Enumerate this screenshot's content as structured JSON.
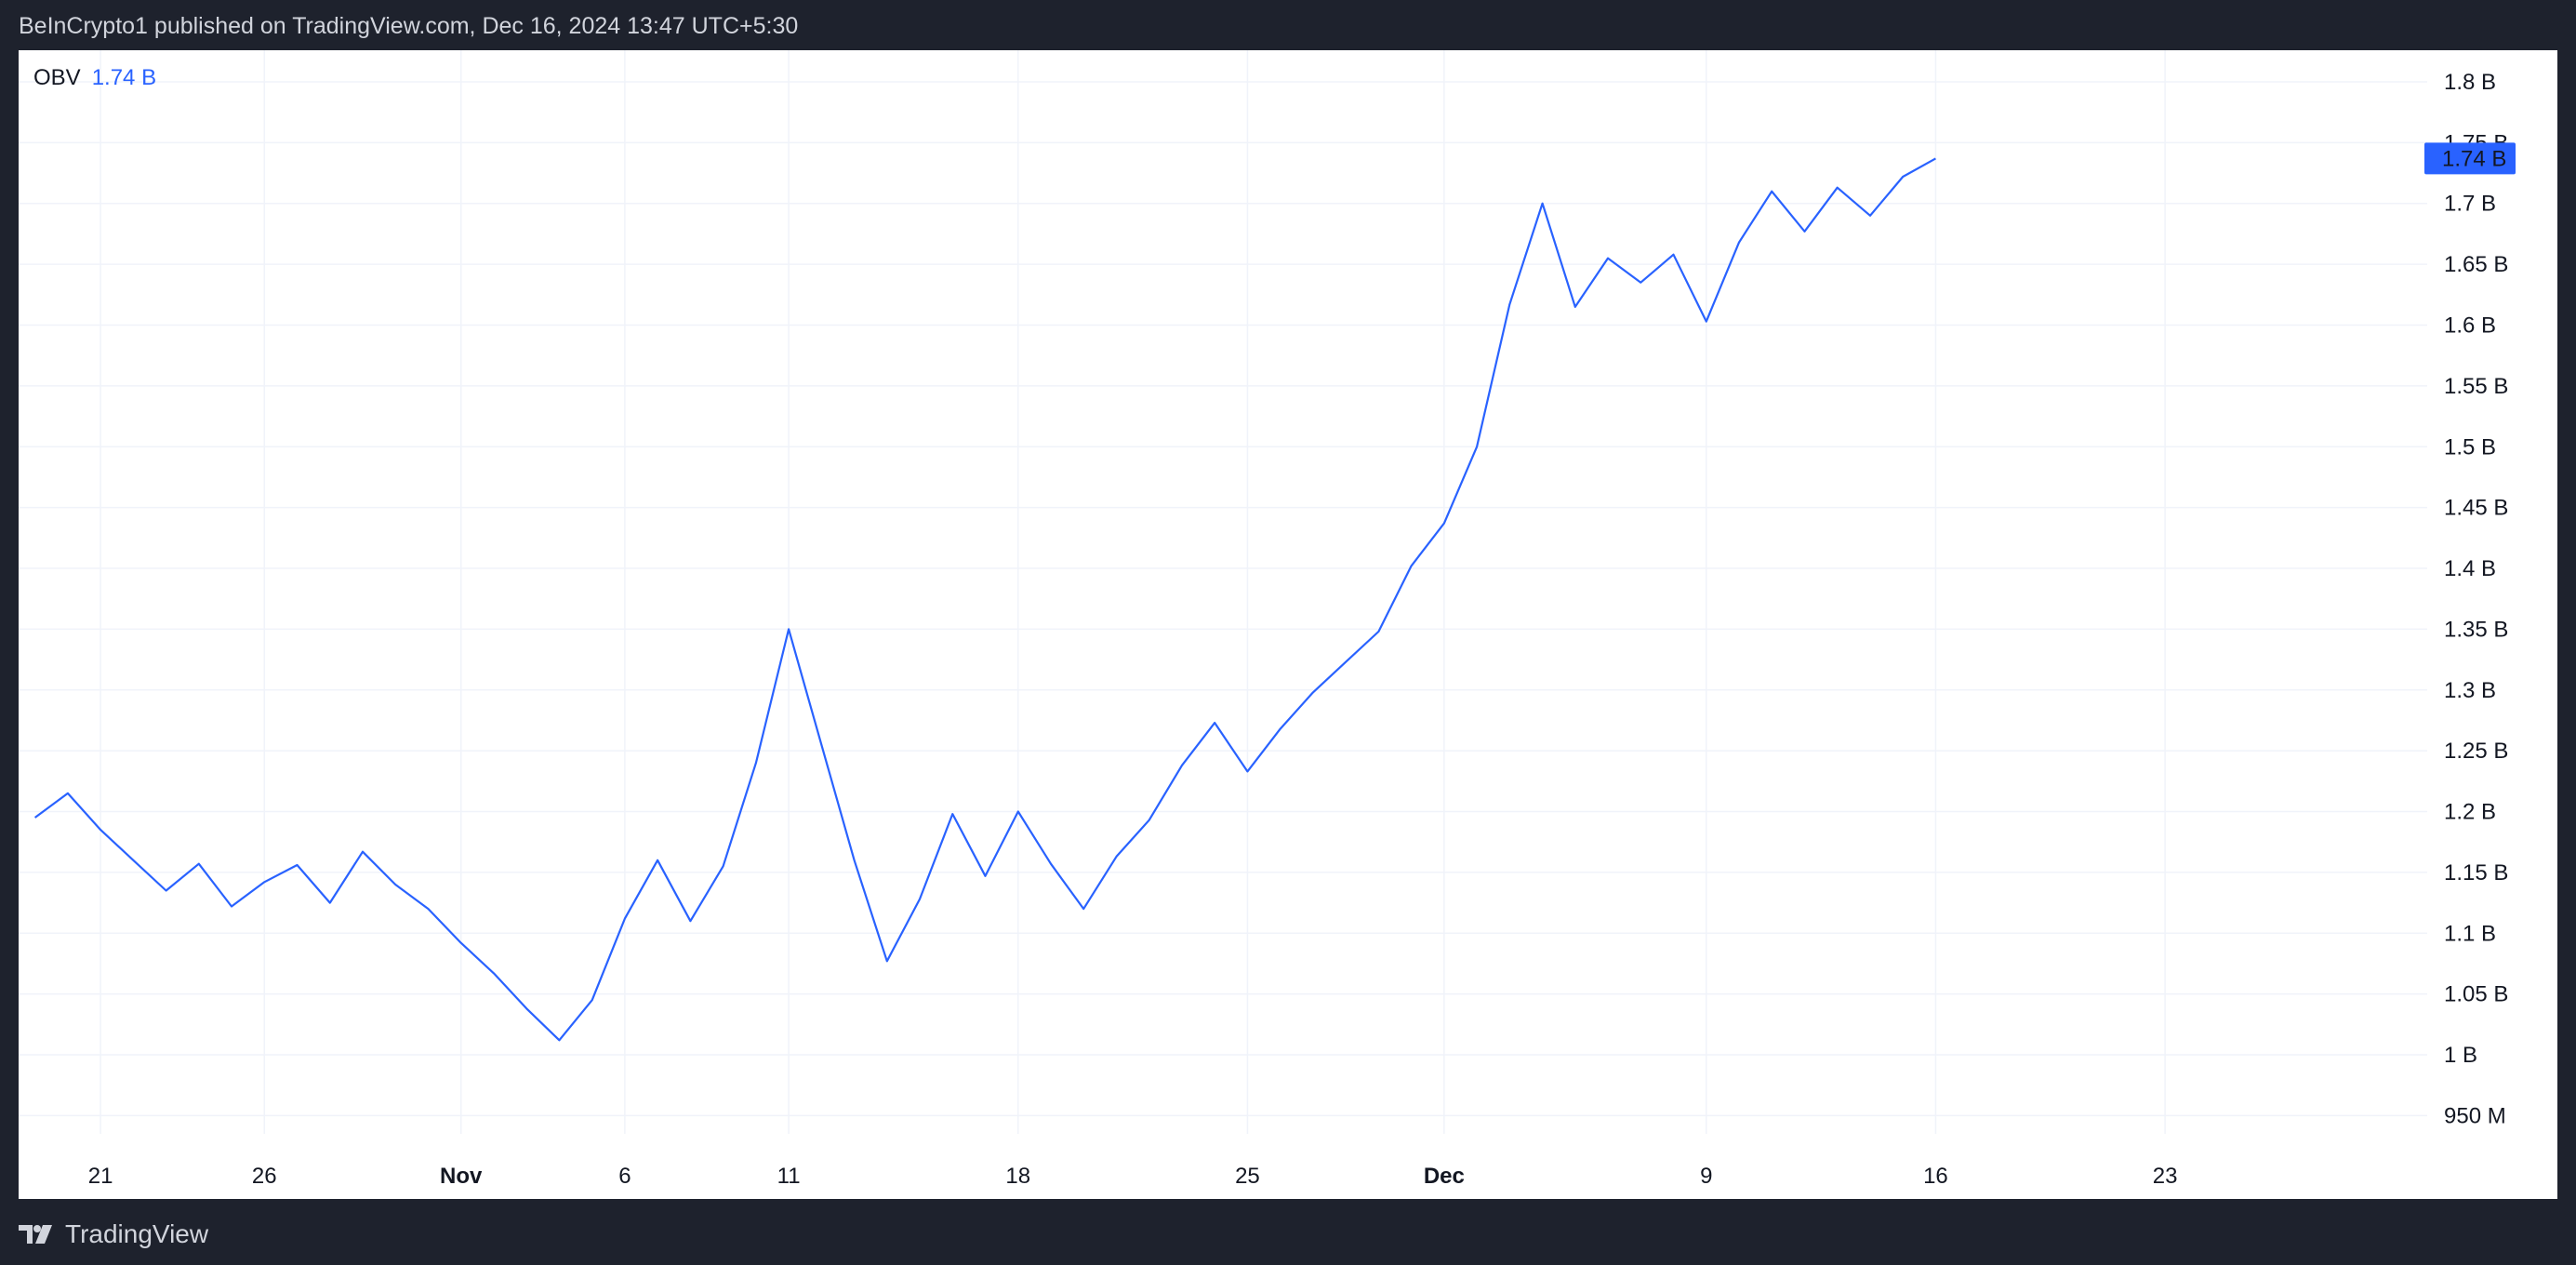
{
  "header": {
    "published": "BeInCrypto1 published on TradingView.com, Dec 16, 2024 13:47 UTC+5:30"
  },
  "footer": {
    "brand": "TradingView"
  },
  "legend": {
    "name": "OBV",
    "value": "1.74 B"
  },
  "colors": {
    "series": "#2962ff",
    "grid": "#f0f3fa",
    "background": "#ffffff",
    "frame": "#1e222d",
    "text": "#131722"
  },
  "chart_data": {
    "type": "line",
    "x": [
      "Oct 19",
      "Oct 20",
      "Oct 21",
      "Oct 22",
      "Oct 23",
      "Oct 24",
      "Oct 25",
      "Oct 26",
      "Oct 27",
      "Oct 28",
      "Oct 29",
      "Oct 30",
      "Oct 31",
      "Nov 1",
      "Nov 2",
      "Nov 3",
      "Nov 4",
      "Nov 5",
      "Nov 6",
      "Nov 7",
      "Nov 8",
      "Nov 9",
      "Nov 10",
      "Nov 11",
      "Nov 12",
      "Nov 13",
      "Nov 14",
      "Nov 15",
      "Nov 16",
      "Nov 17",
      "Nov 18",
      "Nov 19",
      "Nov 20",
      "Nov 21",
      "Nov 22",
      "Nov 23",
      "Nov 24",
      "Nov 25",
      "Nov 26",
      "Nov 27",
      "Nov 28",
      "Nov 29",
      "Nov 30",
      "Dec 1",
      "Dec 2",
      "Dec 3",
      "Dec 4",
      "Dec 5",
      "Dec 6",
      "Dec 7",
      "Dec 8",
      "Dec 9",
      "Dec 10",
      "Dec 11",
      "Dec 12",
      "Dec 13",
      "Dec 14",
      "Dec 15",
      "Dec 16"
    ],
    "series": [
      {
        "name": "OBV",
        "values": [
          1.195,
          1.215,
          1.185,
          1.16,
          1.135,
          1.157,
          1.122,
          1.142,
          1.156,
          1.125,
          1.167,
          1.14,
          1.12,
          1.092,
          1.067,
          1.038,
          1.012,
          1.045,
          1.112,
          1.16,
          1.11,
          1.155,
          1.24,
          1.35,
          1.255,
          1.16,
          1.077,
          1.128,
          1.198,
          1.147,
          1.2,
          1.157,
          1.12,
          1.163,
          1.193,
          1.238,
          1.273,
          1.233,
          1.268,
          1.298,
          1.323,
          1.348,
          1.402,
          1.437,
          1.5,
          1.617,
          1.7,
          1.615,
          1.655,
          1.635,
          1.658,
          1.603,
          1.668,
          1.71,
          1.677,
          1.713,
          1.69,
          1.722,
          1.737
        ]
      }
    ],
    "y_ticks": [
      "1.8 B",
      "1.75 B",
      "1.7 B",
      "1.65 B",
      "1.6 B",
      "1.55 B",
      "1.5 B",
      "1.45 B",
      "1.4 B",
      "1.35 B",
      "1.3 B",
      "1.25 B",
      "1.2 B",
      "1.15 B",
      "1.1 B",
      "1.05 B",
      "1 B",
      "950 M"
    ],
    "y_tick_values": [
      1.8,
      1.75,
      1.7,
      1.65,
      1.6,
      1.55,
      1.5,
      1.45,
      1.4,
      1.35,
      1.3,
      1.25,
      1.2,
      1.15,
      1.1,
      1.05,
      1.0,
      0.95
    ],
    "x_ticks": [
      {
        "label": "21",
        "date": "Oct 21",
        "bold": false
      },
      {
        "label": "26",
        "date": "Oct 26",
        "bold": false
      },
      {
        "label": "Nov",
        "date": "Nov 1",
        "bold": true
      },
      {
        "label": "6",
        "date": "Nov 6",
        "bold": false
      },
      {
        "label": "11",
        "date": "Nov 11",
        "bold": false
      },
      {
        "label": "18",
        "date": "Nov 18",
        "bold": false
      },
      {
        "label": "25",
        "date": "Nov 25",
        "bold": false
      },
      {
        "label": "Dec",
        "date": "Dec 1",
        "bold": true
      },
      {
        "label": "9",
        "date": "Dec 9",
        "bold": false
      },
      {
        "label": "16",
        "date": "Dec 16",
        "bold": false
      },
      {
        "label": "23",
        "date": "Dec 23",
        "bold": false
      }
    ],
    "ylim": [
      0.935,
      1.826
    ],
    "xlim": [
      "Oct 18.5",
      "Dec 31"
    ],
    "last_value_label": "1.74 B",
    "grid": true
  }
}
